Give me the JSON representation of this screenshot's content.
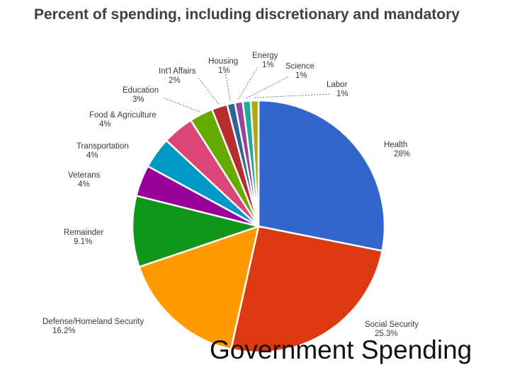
{
  "slide": {
    "caption": "Government Spending"
  },
  "chart_data": {
    "type": "pie",
    "title": "Percent of spending, including discretionary and mandatory",
    "start_angle_deg": 0,
    "direction": "clockwise",
    "slices": [
      {
        "label": "Health",
        "value_label": "28%",
        "value": 28,
        "color": "#3366cc"
      },
      {
        "label": "Social Security",
        "value_label": "25.3%",
        "value": 25.3,
        "color": "#dc3912"
      },
      {
        "label": "Defense/Homeland Security",
        "value_label": "16.2%",
        "value": 16.2,
        "color": "#ff9900"
      },
      {
        "label": "Remainder",
        "value_label": "9.1%",
        "value": 9.1,
        "color": "#109618"
      },
      {
        "label": "Veterans",
        "value_label": "4%",
        "value": 4,
        "color": "#990099"
      },
      {
        "label": "Transportation",
        "value_label": "4%",
        "value": 4,
        "color": "#0099c6"
      },
      {
        "label": "Food & Agriculture",
        "value_label": "4%",
        "value": 4,
        "color": "#dd4477"
      },
      {
        "label": "Education",
        "value_label": "3%",
        "value": 3,
        "color": "#66aa00"
      },
      {
        "label": "Int'l Affairs",
        "value_label": "2%",
        "value": 2,
        "color": "#b82e2e"
      },
      {
        "label": "Housing",
        "value_label": "1%",
        "value": 1,
        "color": "#316395"
      },
      {
        "label": "Energy",
        "value_label": "1%",
        "value": 1,
        "color": "#994499"
      },
      {
        "label": "Science",
        "value_label": "1%",
        "value": 1,
        "color": "#22aa99"
      },
      {
        "label": "Labor",
        "value_label": "1%",
        "value": 1,
        "color": "#aaaa11"
      }
    ]
  }
}
